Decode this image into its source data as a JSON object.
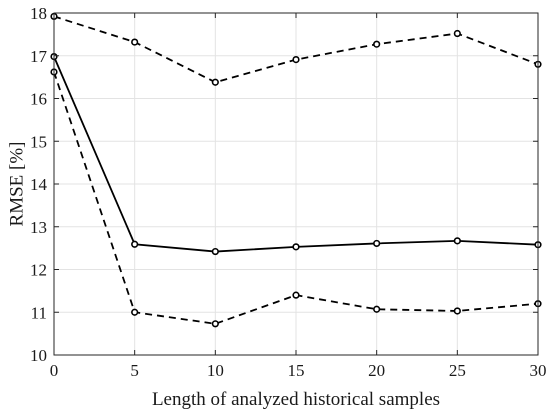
{
  "chart_data": {
    "type": "line",
    "title": "",
    "xlabel": "Length of analyzed historical samples",
    "ylabel": "RMSE [%]",
    "xlim": [
      0,
      30
    ],
    "ylim": [
      10,
      18
    ],
    "xticks": [
      "0",
      "5",
      "10",
      "15",
      "20",
      "25",
      "30"
    ],
    "yticks": [
      "10",
      "11",
      "12",
      "13",
      "14",
      "15",
      "16",
      "17",
      "18"
    ],
    "grid": true,
    "legend": "none",
    "x": [
      0,
      5,
      10,
      15,
      20,
      25,
      30
    ],
    "series": [
      {
        "values": [
          17.92,
          17.32,
          16.38,
          16.91,
          17.27,
          17.52,
          16.8
        ],
        "line_style": "dashed",
        "marker": "circle",
        "color": "#000000"
      },
      {
        "values": [
          16.98,
          12.59,
          12.42,
          12.53,
          12.61,
          12.67,
          12.58
        ],
        "line_style": "solid",
        "marker": "circle",
        "color": "#000000"
      },
      {
        "values": [
          16.62,
          11.0,
          10.73,
          11.4,
          11.07,
          11.03,
          11.2
        ],
        "line_style": "dashed",
        "marker": "circle",
        "color": "#000000"
      }
    ]
  }
}
